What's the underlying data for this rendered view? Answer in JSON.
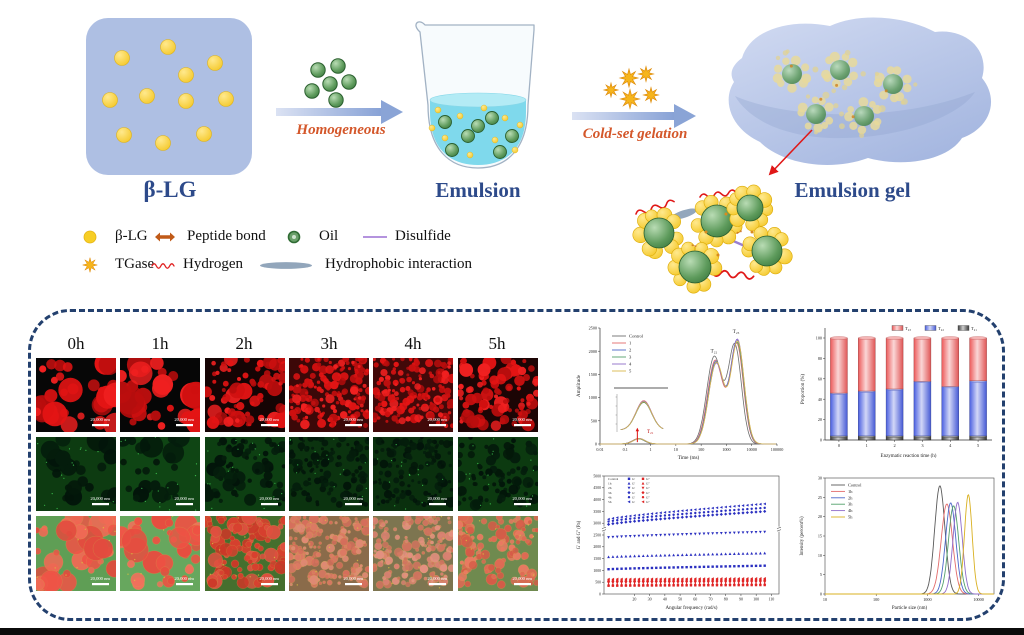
{
  "colors": {
    "title_blue": "#2d4a8a",
    "process_orange": "#d4572a",
    "panel_border": "#23406e",
    "protein_yellow": "#f2c318",
    "oil_green": "#3c7a40",
    "gel_blue": "#aebce2",
    "gp_blue": "#2a2fc0",
    "gpp_red": "#e02525"
  },
  "schematic": {
    "blg_label": "β-LG",
    "homogeneous_label": "Homogeneous",
    "emulsion_label": "Emulsion",
    "coldset_label": "Cold-set gelation",
    "gel_label": "Emulsion gel"
  },
  "legend": {
    "items": [
      {
        "icon": "blg-dot",
        "label": "β-LG"
      },
      {
        "icon": "peptide-arrow",
        "label": "Peptide bond"
      },
      {
        "icon": "oil-dot",
        "label": "Oil"
      },
      {
        "icon": "disulfide-line",
        "label": "Disulfide"
      },
      {
        "icon": "tgase-star",
        "label": "TGase"
      },
      {
        "icon": "hydrogen-wave",
        "label": "Hydrogen"
      },
      {
        "icon": "hydrophobic-ellipse",
        "label": "Hydrophobic interaction"
      }
    ]
  },
  "microscopy": {
    "columns": [
      "0h",
      "1h",
      "2h",
      "3h",
      "4h",
      "5h"
    ],
    "rows": [
      "red-channel",
      "green-channel",
      "merged"
    ],
    "scale_label": "20,000 nm"
  },
  "chart_data": [
    {
      "id": "nmr_t2",
      "type": "line",
      "x_scale": "log",
      "xlabel": "Time (ms)",
      "ylabel": "Amplitude",
      "xlim": [
        0.01,
        100000
      ],
      "ylim": [
        0,
        2500
      ],
      "xticks": [
        0.01,
        0.1,
        1,
        10,
        100,
        1000,
        10000,
        100000
      ],
      "yticks": [
        0,
        500,
        1000,
        1500,
        2000,
        2500
      ],
      "annotations": [
        "T₂₁",
        "T₂₂",
        "T₂₃"
      ],
      "peak_sigmas": [
        0.24,
        0.3,
        0.26
      ],
      "series": [
        {
          "name": "Control",
          "color": "#6e6e6e",
          "peaks": [
            [
              0.33,
              112
            ],
            [
              330,
              1880
            ],
            [
              2150,
              2120
            ]
          ]
        },
        {
          "name": "1",
          "color": "#e26b6b",
          "peaks": [
            [
              0.34,
              120
            ],
            [
              360,
              1800
            ],
            [
              2550,
              2150
            ]
          ]
        },
        {
          "name": "2",
          "color": "#4b66c9",
          "peaks": [
            [
              0.35,
              116
            ],
            [
              380,
              1780
            ],
            [
              2650,
              2210
            ]
          ]
        },
        {
          "name": "3",
          "color": "#53a06b",
          "peaks": [
            [
              0.35,
              113
            ],
            [
              390,
              1755
            ],
            [
              2700,
              2160
            ]
          ]
        },
        {
          "name": "4",
          "color": "#8f6cc9",
          "peaks": [
            [
              0.36,
              118
            ],
            [
              395,
              1735
            ],
            [
              2750,
              2230
            ]
          ]
        },
        {
          "name": "5",
          "color": "#d9b84a",
          "peaks": [
            [
              0.36,
              115
            ],
            [
              400,
              1760
            ],
            [
              2800,
              2190
            ]
          ]
        }
      ]
    },
    {
      "id": "t2_proportion",
      "type": "bar",
      "stacked": true,
      "xlabel": "Enzymatic reaction time (h)",
      "ylabel": "Proportion (%)",
      "categories": [
        "0",
        "1",
        "2",
        "3",
        "4",
        "5"
      ],
      "ylim": [
        0,
        100
      ],
      "yticks": [
        0,
        20,
        40,
        60,
        80,
        100
      ],
      "series": [
        {
          "name": "T₂₁",
          "color": "#3a3a3a",
          "values": [
            4,
            4,
            4,
            4,
            4,
            4
          ]
        },
        {
          "name": "T₂₂",
          "color": "#4a5fe0",
          "values": [
            42,
            44,
            46,
            53.5,
            48.5,
            54
          ]
        },
        {
          "name": "T₂₃",
          "color": "#ec5a5a",
          "values": [
            54,
            52,
            50,
            42.5,
            47.5,
            42
          ]
        }
      ],
      "legend_order": [
        "T₂₃",
        "T₂₂",
        "T₂₁"
      ]
    },
    {
      "id": "rheology",
      "type": "scatter",
      "xlabel": "Angular frequency (rad/s)",
      "ylabel": "G′ and G″ (Pa)",
      "xlim": [
        0,
        115
      ],
      "ylim": [
        0,
        5000
      ],
      "xticks": [
        20,
        30,
        40,
        50,
        60,
        70,
        80,
        90,
        100,
        110
      ],
      "yticks": [
        0,
        500,
        1000,
        1500,
        2000,
        2500,
        3000,
        3500,
        4000,
        4500,
        5000
      ],
      "gp_label": "G′",
      "gpp_label": "G″",
      "gp_color": "#2a2fc0",
      "gpp_color": "#e02525",
      "series": [
        {
          "name": "Control",
          "gp": [
            1050,
            1200
          ],
          "gpp": [
            350,
            380
          ]
        },
        {
          "name": "1h",
          "gp": [
            1570,
            1730
          ],
          "gpp": [
            410,
            440
          ]
        },
        {
          "name": "2h",
          "gp": [
            2400,
            2630
          ],
          "gpp": [
            470,
            500
          ]
        },
        {
          "name": "3h",
          "gp": [
            2950,
            3500
          ],
          "gpp": [
            530,
            560
          ]
        },
        {
          "name": "4h",
          "gp": [
            3070,
            3650
          ],
          "gpp": [
            580,
            610
          ]
        },
        {
          "name": "5h",
          "gp": [
            3170,
            3820
          ],
          "gpp": [
            630,
            660
          ]
        }
      ]
    },
    {
      "id": "particle_size",
      "type": "line",
      "x_scale": "log",
      "xlabel": "Particle size (nm)",
      "ylabel": "Intensity (percent%)",
      "xlim": [
        10,
        20000
      ],
      "ylim": [
        0,
        30
      ],
      "xticks": [
        10,
        100,
        1000,
        10000
      ],
      "yticks": [
        0,
        5,
        10,
        15,
        20,
        25,
        30
      ],
      "series": [
        {
          "name": "Control",
          "color": "#5a5a5a",
          "peak": [
            1750,
            28.0
          ],
          "sigma": 0.1
        },
        {
          "name": "1h",
          "color": "#e26b6b",
          "peak": [
            2400,
            23.3
          ],
          "sigma": 0.11
        },
        {
          "name": "2h",
          "color": "#4b66c9",
          "peak": [
            2850,
            23.6
          ],
          "sigma": 0.1
        },
        {
          "name": "3h",
          "color": "#53a06b",
          "peak": [
            3250,
            22.8
          ],
          "sigma": 0.1
        },
        {
          "name": "4h",
          "color": "#8f6cc9",
          "peak": [
            3900,
            23.7
          ],
          "sigma": 0.09
        },
        {
          "name": "5h",
          "color": "#d9b020",
          "peak": [
            6300,
            25.7
          ],
          "sigma": 0.075
        }
      ]
    }
  ]
}
